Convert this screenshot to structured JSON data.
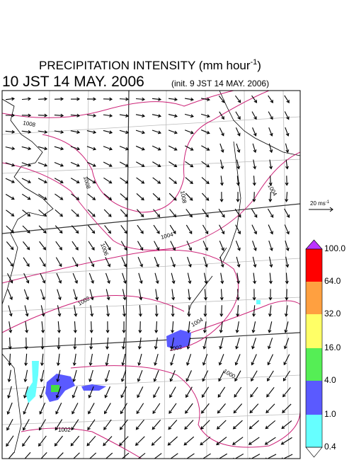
{
  "header": {
    "title": "PRECIPITATION INTENSITY (mm hour",
    "title_exponent": "-1",
    "title_close": ")",
    "valid_time": "10 JST 14 MAY. 2006",
    "init_time": "(init. 9 JST 14 MAY. 2006)"
  },
  "vector_key": {
    "label": "20 ms",
    "exponent": "-1"
  },
  "colorbar": {
    "levels": [
      "100.0",
      "64.0",
      "32.0",
      "16.0",
      "4.0",
      "1.0",
      "0.4"
    ]
  },
  "contour_labels": [
    "1008",
    "1008",
    "1008",
    "1006",
    "1004",
    "1004",
    "1002",
    "1004",
    "1002",
    "1000",
    "1002"
  ]
}
